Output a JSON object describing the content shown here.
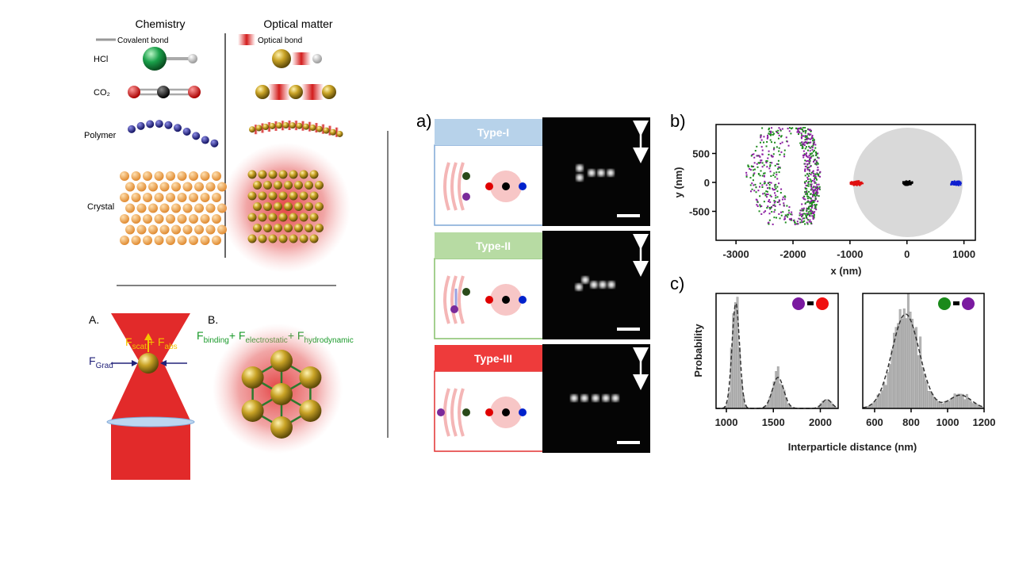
{
  "left_figure": {
    "headers": [
      "Chemistry",
      "Optical matter"
    ],
    "legend": [
      "Covalent bond",
      "Optical bond"
    ],
    "rows": [
      "HCl",
      "CO₂",
      "Polymer",
      "Crystal"
    ],
    "panels": [
      "A.",
      "B."
    ],
    "force_trap": [
      "F",
      "scat",
      "+ F",
      "abs"
    ],
    "force_grad": [
      "F",
      "Grad"
    ],
    "force_assembly": [
      "F",
      "binding",
      "+ F",
      "electrostatic",
      "+ F",
      "hydrodynamic"
    ]
  },
  "panel_a": {
    "label": "a)",
    "types": [
      "Type-I",
      "Type-II",
      "Type-III"
    ]
  },
  "panel_b": {
    "label": "b)",
    "xlabel": "x (nm)",
    "ylabel": "y (nm)",
    "xlim": [
      -3350,
      1200
    ],
    "ylim": [
      -1000,
      1000
    ],
    "xticks": [
      -3000,
      -2000,
      -1000,
      0,
      1000
    ],
    "yticks": [
      500,
      0,
      -500
    ]
  },
  "panel_c": {
    "label": "c)",
    "ylabel": "Probability",
    "xlabel": "Interparticle distance (nm)",
    "histograms": [
      {
        "xlim": [
          890,
          2190
        ],
        "xticks": [
          1000,
          1500,
          2000
        ]
      },
      {
        "xlim": [
          535,
          1200
        ],
        "xticks": [
          600,
          800,
          1000,
          1200
        ]
      }
    ]
  }
}
